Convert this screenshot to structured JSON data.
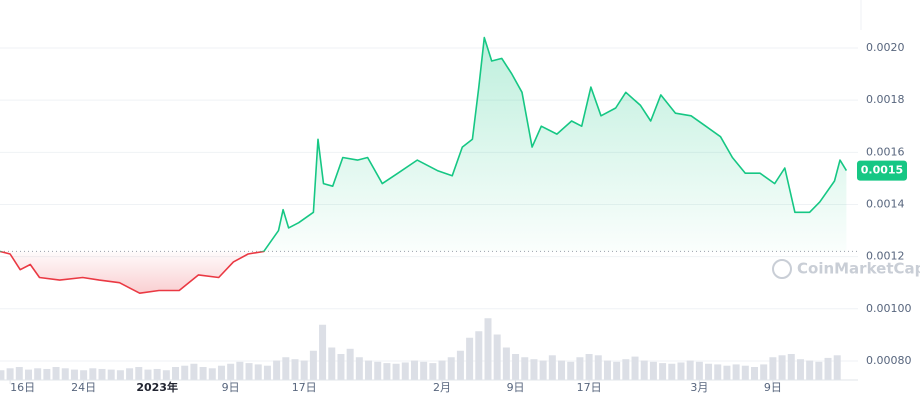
{
  "chart_data": {
    "type": "line",
    "x": [
      -1.1,
      0,
      1.1,
      2.2,
      3.2,
      5.4,
      7.9,
      9.7,
      11.9,
      14.1,
      16.2,
      18.4,
      20.5,
      22.7,
      24.3,
      25.9,
      27.6,
      29.2,
      29.7,
      30.3,
      31.4,
      33.0,
      33.5,
      34.1,
      35.1,
      36.2,
      37.8,
      38.9,
      40.5,
      42.2,
      44.3,
      46.5,
      48.1,
      49.2,
      50.3,
      51.0,
      51.6,
      52.4,
      53.5,
      54.6,
      55.7,
      56.8,
      57.8,
      59.5,
      61.1,
      62.2,
      63.2,
      64.3,
      65.9,
      67.0,
      68.6,
      69.7,
      70.8,
      72.4,
      74.1,
      75.7,
      77.3,
      78.6,
      80.0,
      81.6,
      83.2,
      84.3,
      85.4,
      87.0,
      88.1,
      89.7,
      90.3,
      91.0
    ],
    "series": [
      {
        "values": [
          0.00122,
          0.00121,
          0.00115,
          0.00117,
          0.00112,
          0.00111,
          0.00112,
          0.00111,
          0.0011,
          0.00106,
          0.00107,
          0.00107,
          0.00113,
          0.00112,
          0.00118,
          0.00121,
          0.00122,
          0.0013,
          0.00138,
          0.00131,
          0.00133,
          0.00137,
          0.00165,
          0.00148,
          0.00147,
          0.00158,
          0.00157,
          0.00158,
          0.00148,
          0.00152,
          0.00157,
          0.00153,
          0.00151,
          0.00162,
          0.00165,
          0.00185,
          0.00204,
          0.00195,
          0.00196,
          0.0019,
          0.00183,
          0.00162,
          0.0017,
          0.00167,
          0.00172,
          0.0017,
          0.00185,
          0.00174,
          0.00177,
          0.00183,
          0.00178,
          0.00172,
          0.00182,
          0.00175,
          0.00174,
          0.0017,
          0.00166,
          0.00158,
          0.00152,
          0.00152,
          0.00148,
          0.00154,
          0.00137,
          0.00137,
          0.00141,
          0.00149,
          0.00157,
          0.00153
        ]
      }
    ],
    "color_above": "#16c784",
    "color_below": "#ea3943",
    "baseline": 0.00122,
    "xlim": [
      -1.1,
      91.5
    ],
    "xticks": [
      {
        "value": 0,
        "label": "16日"
      },
      {
        "value": 8,
        "label": "24日"
      },
      {
        "value": 16,
        "label": "2023年"
      },
      {
        "value": 24,
        "label": "9日"
      },
      {
        "value": 32,
        "label": "17日"
      },
      {
        "value": 47,
        "label": "2月"
      },
      {
        "value": 55,
        "label": "9日"
      },
      {
        "value": 63,
        "label": "17日"
      },
      {
        "value": 75,
        "label": "3月"
      },
      {
        "value": 83,
        "label": "9日"
      }
    ],
    "ylim": [
      0.000727,
      0.002184
    ],
    "yticks": [
      {
        "value": 0.002,
        "label": "0.0020"
      },
      {
        "value": 0.0018,
        "label": "0.0018"
      },
      {
        "value": 0.0016,
        "label": "0.0016"
      },
      {
        "value": 0.0014,
        "label": "0.0014"
      },
      {
        "value": 0.0012,
        "label": "0.0012"
      },
      {
        "value": 0.001,
        "label": "0.00100"
      },
      {
        "value": 0.0008,
        "label": "0.00080"
      }
    ],
    "grid": true,
    "current_price": {
      "value": 0.00153,
      "label": "0.0015"
    },
    "volume": {
      "color": "#dcdfe6",
      "vlim": [
        0,
        100
      ],
      "x": [
        -1,
        0,
        1,
        2,
        3,
        4,
        5,
        6,
        7,
        8,
        9,
        10,
        11,
        12,
        13,
        14,
        15,
        16,
        17,
        18,
        19,
        20,
        21,
        22,
        23,
        24,
        25,
        26,
        27,
        28,
        29,
        30,
        31,
        32,
        33,
        34,
        35,
        36,
        37,
        38,
        39,
        40,
        41,
        42,
        43,
        44,
        45,
        46,
        47,
        48,
        49,
        50,
        51,
        52,
        53,
        54,
        55,
        56,
        57,
        58,
        59,
        60,
        61,
        62,
        63,
        64,
        65,
        66,
        67,
        68,
        69,
        70,
        71,
        72,
        73,
        74,
        75,
        76,
        77,
        78,
        79,
        80,
        81,
        82,
        83,
        84,
        85,
        86,
        87,
        88,
        89,
        90
      ],
      "values": [
        15,
        18,
        20,
        16,
        18,
        17,
        20,
        18,
        16,
        15,
        18,
        17,
        16,
        15,
        18,
        20,
        16,
        17,
        15,
        20,
        22,
        25,
        20,
        18,
        22,
        25,
        28,
        26,
        24,
        22,
        30,
        35,
        32,
        30,
        45,
        85,
        50,
        40,
        48,
        35,
        30,
        28,
        26,
        25,
        27,
        30,
        28,
        26,
        30,
        35,
        45,
        65,
        75,
        95,
        70,
        50,
        40,
        35,
        32,
        30,
        38,
        30,
        28,
        35,
        40,
        38,
        30,
        28,
        32,
        36,
        30,
        28,
        26,
        25,
        27,
        30,
        28,
        25,
        24,
        22,
        24,
        22,
        20,
        24,
        35,
        38,
        40,
        32,
        30,
        28,
        34,
        38
      ]
    },
    "watermark": "CoinMarketCap"
  }
}
